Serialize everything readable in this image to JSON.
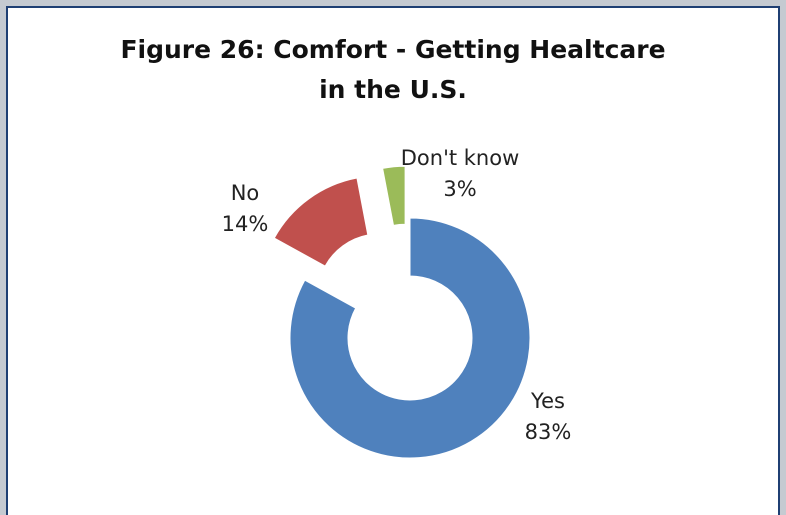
{
  "chart_data": {
    "type": "pie",
    "style": "donut",
    "title_lines": [
      "Figure 26: Comfort - Getting Healtcare",
      "in the U.S."
    ],
    "slices": [
      {
        "label": "Yes",
        "value": 83,
        "value_label": "83%",
        "color": "#4f81bd",
        "exploded": false
      },
      {
        "label": "No",
        "value": 14,
        "value_label": "14%",
        "color": "#c0504d",
        "exploded": true
      },
      {
        "label": "Don't know",
        "value": 3,
        "value_label": "3%",
        "color": "#9bbb59",
        "exploded": true
      }
    ],
    "legend": "none",
    "data_labels": "outside"
  }
}
